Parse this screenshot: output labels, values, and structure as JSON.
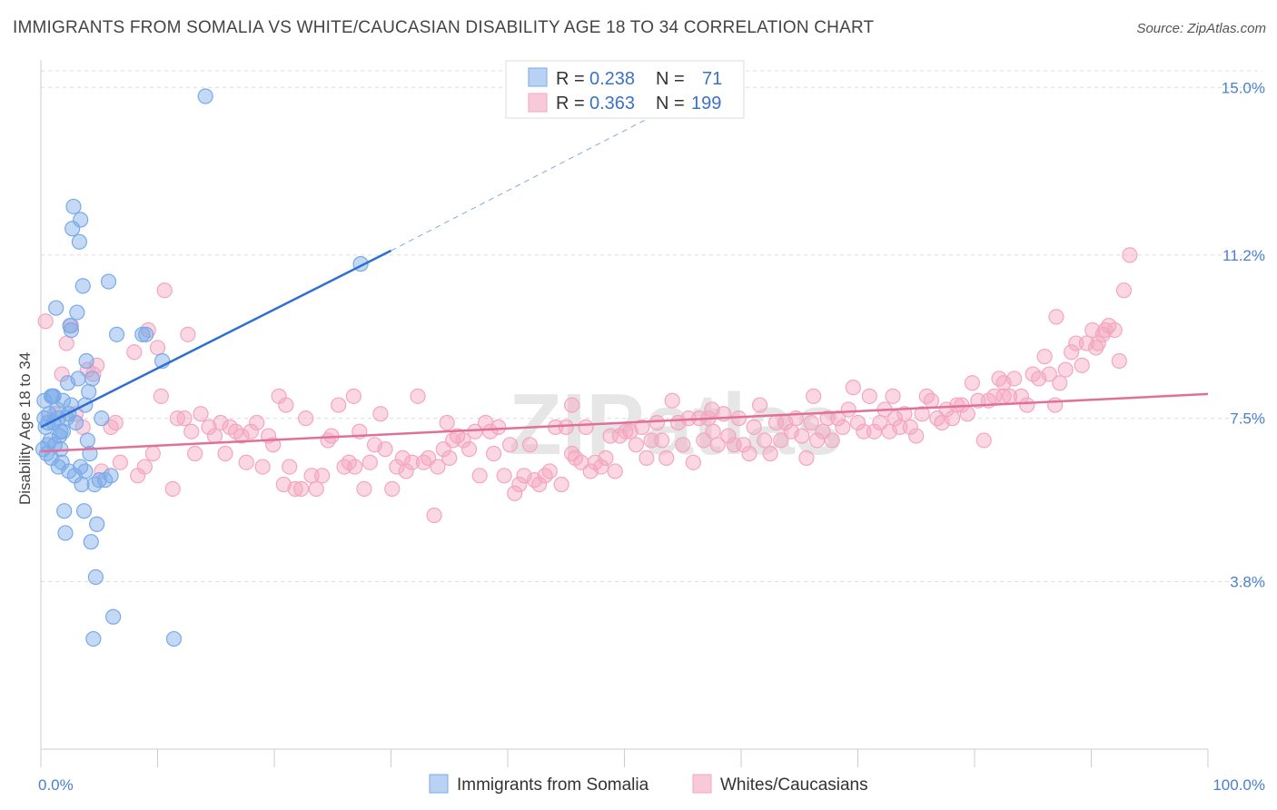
{
  "title": "IMMIGRANTS FROM SOMALIA VS WHITE/CAUCASIAN DISABILITY AGE 18 TO 34 CORRELATION CHART",
  "source": "Source: ZipAtlas.com",
  "watermark": "ZIPatlas",
  "chart_data": {
    "type": "scatter",
    "xlabel": "",
    "ylabel": "Disability Age 18 to 34",
    "xlim": [
      0,
      100
    ],
    "ylim": [
      0,
      15.5
    ],
    "x_tick_labels": [
      "0.0%",
      "100.0%"
    ],
    "y_ticks": [
      3.8,
      7.5,
      11.2,
      15.0
    ],
    "y_tick_labels": [
      "3.8%",
      "7.5%",
      "11.2%",
      "15.0%"
    ],
    "grid": true,
    "legend_placement": "top-center",
    "series": [
      {
        "name": "Immigrants from Somalia",
        "color": "#7aaae8",
        "line_color": "#2c6fd1",
        "R": "0.238",
        "N": "71",
        "trend": {
          "x0": 0,
          "y0": 7.3,
          "x1": 30,
          "y1": 11.3,
          "dash_to_x": 55,
          "dash_to_y": 14.7
        },
        "points": [
          [
            0.2,
            6.8
          ],
          [
            0.3,
            7.5
          ],
          [
            0.3,
            7.9
          ],
          [
            0.4,
            7.3
          ],
          [
            0.5,
            6.7
          ],
          [
            0.6,
            6.9
          ],
          [
            0.7,
            7.6
          ],
          [
            0.8,
            7.0
          ],
          [
            0.9,
            6.6
          ],
          [
            1.0,
            8.0
          ],
          [
            1.1,
            7.4
          ],
          [
            1.2,
            6.9
          ],
          [
            1.3,
            10.0
          ],
          [
            1.4,
            7.7
          ],
          [
            1.5,
            6.4
          ],
          [
            1.6,
            7.1
          ],
          [
            1.7,
            6.8
          ],
          [
            1.8,
            6.5
          ],
          [
            1.9,
            7.9
          ],
          [
            2.0,
            5.4
          ],
          [
            2.1,
            4.9
          ],
          [
            2.2,
            7.5
          ],
          [
            2.3,
            8.3
          ],
          [
            2.4,
            6.3
          ],
          [
            2.5,
            9.6
          ],
          [
            2.6,
            7.8
          ],
          [
            2.7,
            11.8
          ],
          [
            2.8,
            12.3
          ],
          [
            3.0,
            7.4
          ],
          [
            3.1,
            9.9
          ],
          [
            3.2,
            8.4
          ],
          [
            3.3,
            11.5
          ],
          [
            3.4,
            12.0
          ],
          [
            3.5,
            6.0
          ],
          [
            3.6,
            10.5
          ],
          [
            3.7,
            5.4
          ],
          [
            3.8,
            6.3
          ],
          [
            3.9,
            8.8
          ],
          [
            4.0,
            7.0
          ],
          [
            4.1,
            8.1
          ],
          [
            4.2,
            6.7
          ],
          [
            4.3,
            4.7
          ],
          [
            4.4,
            8.4
          ],
          [
            4.5,
            2.5
          ],
          [
            4.6,
            6.0
          ],
          [
            4.7,
            3.9
          ],
          [
            4.8,
            5.1
          ],
          [
            5.0,
            6.1
          ],
          [
            5.2,
            7.5
          ],
          [
            5.5,
            6.1
          ],
          [
            5.8,
            10.6
          ],
          [
            6.0,
            6.2
          ],
          [
            6.2,
            3.0
          ],
          [
            6.5,
            9.4
          ],
          [
            1.1,
            8.0
          ],
          [
            1.5,
            7.5
          ],
          [
            0.9,
            8.0
          ],
          [
            1.9,
            7.2
          ],
          [
            2.4,
            7.6
          ],
          [
            2.9,
            6.2
          ],
          [
            3.4,
            6.4
          ],
          [
            3.8,
            7.8
          ],
          [
            8.7,
            9.4
          ],
          [
            9.0,
            9.4
          ],
          [
            10.4,
            8.8
          ],
          [
            11.4,
            2.5
          ],
          [
            14.1,
            14.8
          ],
          [
            27.4,
            11.0
          ],
          [
            2.6,
            9.5
          ],
          [
            1.7,
            7.2
          ],
          [
            0.6,
            7.4
          ]
        ]
      },
      {
        "name": "Whites/Caucasians",
        "color": "#f4a6bf",
        "line_color": "#e0709a",
        "R": "0.363",
        "N": "199",
        "trend": {
          "x0": 0,
          "y0": 6.75,
          "x1": 100,
          "y1": 8.05
        },
        "points": [
          [
            0.4,
            9.7
          ],
          [
            1.2,
            7.6
          ],
          [
            1.8,
            8.5
          ],
          [
            2.2,
            9.2
          ],
          [
            2.6,
            9.6
          ],
          [
            3.0,
            7.6
          ],
          [
            3.6,
            7.3
          ],
          [
            4.0,
            8.6
          ],
          [
            4.5,
            8.5
          ],
          [
            4.8,
            8.7
          ],
          [
            5.2,
            6.3
          ],
          [
            6.0,
            7.3
          ],
          [
            6.4,
            7.4
          ],
          [
            6.8,
            6.5
          ],
          [
            8.0,
            9.0
          ],
          [
            8.3,
            6.2
          ],
          [
            8.9,
            6.4
          ],
          [
            9.2,
            9.5
          ],
          [
            9.6,
            6.7
          ],
          [
            10.0,
            9.1
          ],
          [
            10.3,
            8.0
          ],
          [
            10.6,
            10.4
          ],
          [
            11.3,
            5.9
          ],
          [
            11.7,
            7.5
          ],
          [
            12.6,
            9.4
          ],
          [
            12.9,
            7.2
          ],
          [
            13.2,
            6.7
          ],
          [
            13.7,
            7.6
          ],
          [
            14.4,
            7.3
          ],
          [
            14.9,
            7.1
          ],
          [
            15.4,
            7.4
          ],
          [
            15.8,
            6.7
          ],
          [
            16.2,
            7.3
          ],
          [
            16.7,
            7.2
          ],
          [
            17.2,
            7.1
          ],
          [
            17.6,
            6.5
          ],
          [
            18.0,
            7.2
          ],
          [
            18.5,
            7.4
          ],
          [
            19.0,
            6.4
          ],
          [
            19.5,
            7.1
          ],
          [
            19.9,
            6.9
          ],
          [
            20.4,
            8.0
          ],
          [
            20.8,
            6.0
          ],
          [
            21.3,
            6.4
          ],
          [
            21.8,
            5.9
          ],
          [
            22.3,
            5.9
          ],
          [
            22.7,
            7.5
          ],
          [
            23.2,
            6.2
          ],
          [
            23.6,
            5.9
          ],
          [
            24.1,
            6.2
          ],
          [
            24.6,
            7.0
          ],
          [
            24.9,
            7.1
          ],
          [
            25.5,
            7.8
          ],
          [
            26.0,
            6.4
          ],
          [
            26.4,
            6.5
          ],
          [
            26.9,
            6.4
          ],
          [
            27.3,
            7.2
          ],
          [
            27.7,
            5.9
          ],
          [
            28.2,
            6.5
          ],
          [
            28.6,
            6.9
          ],
          [
            29.1,
            7.6
          ],
          [
            29.5,
            6.8
          ],
          [
            30.1,
            5.9
          ],
          [
            30.5,
            6.4
          ],
          [
            31.0,
            6.6
          ],
          [
            31.3,
            6.3
          ],
          [
            31.8,
            6.5
          ],
          [
            32.3,
            8.0
          ],
          [
            32.8,
            6.5
          ],
          [
            33.2,
            6.6
          ],
          [
            33.7,
            5.3
          ],
          [
            34.0,
            6.4
          ],
          [
            34.5,
            6.8
          ],
          [
            35.0,
            6.6
          ],
          [
            35.3,
            7.0
          ],
          [
            35.7,
            7.1
          ],
          [
            36.2,
            7.0
          ],
          [
            36.7,
            6.8
          ],
          [
            37.2,
            7.2
          ],
          [
            37.6,
            6.2
          ],
          [
            38.1,
            7.4
          ],
          [
            38.5,
            7.2
          ],
          [
            38.8,
            6.7
          ],
          [
            39.2,
            7.3
          ],
          [
            39.7,
            6.2
          ],
          [
            40.2,
            6.9
          ],
          [
            40.6,
            5.8
          ],
          [
            41.0,
            6.0
          ],
          [
            41.4,
            6.2
          ],
          [
            41.9,
            6.9
          ],
          [
            42.3,
            6.1
          ],
          [
            42.7,
            6.0
          ],
          [
            43.2,
            6.2
          ],
          [
            43.6,
            6.3
          ],
          [
            44.1,
            7.3
          ],
          [
            44.6,
            6.0
          ],
          [
            45.0,
            7.3
          ],
          [
            45.5,
            6.7
          ],
          [
            45.8,
            6.6
          ],
          [
            46.3,
            6.5
          ],
          [
            46.7,
            7.3
          ],
          [
            47.1,
            6.3
          ],
          [
            47.5,
            6.5
          ],
          [
            48.0,
            6.4
          ],
          [
            48.4,
            6.6
          ],
          [
            48.8,
            7.1
          ],
          [
            49.2,
            6.3
          ],
          [
            49.6,
            7.1
          ],
          [
            50.1,
            7.2
          ],
          [
            50.5,
            7.2
          ],
          [
            51.0,
            6.9
          ],
          [
            51.5,
            7.3
          ],
          [
            51.9,
            6.6
          ],
          [
            52.3,
            7.0
          ],
          [
            52.8,
            7.4
          ],
          [
            53.2,
            7.0
          ],
          [
            53.6,
            6.6
          ],
          [
            54.1,
            7.9
          ],
          [
            54.6,
            7.4
          ],
          [
            55.0,
            6.9
          ],
          [
            55.5,
            7.5
          ],
          [
            55.9,
            6.5
          ],
          [
            56.4,
            7.5
          ],
          [
            56.8,
            7.0
          ],
          [
            57.2,
            7.5
          ],
          [
            57.6,
            7.2
          ],
          [
            58.0,
            6.9
          ],
          [
            58.5,
            7.6
          ],
          [
            58.9,
            7.1
          ],
          [
            59.4,
            6.9
          ],
          [
            59.8,
            7.5
          ],
          [
            60.2,
            6.9
          ],
          [
            60.7,
            6.7
          ],
          [
            61.1,
            7.3
          ],
          [
            61.6,
            7.8
          ],
          [
            62.0,
            7.0
          ],
          [
            62.5,
            6.7
          ],
          [
            63.0,
            7.4
          ],
          [
            63.4,
            7.0
          ],
          [
            63.8,
            7.4
          ],
          [
            64.3,
            7.2
          ],
          [
            64.7,
            7.5
          ],
          [
            65.2,
            7.1
          ],
          [
            65.6,
            6.6
          ],
          [
            66.0,
            7.4
          ],
          [
            66.5,
            7.0
          ],
          [
            67.0,
            7.2
          ],
          [
            67.4,
            7.5
          ],
          [
            67.8,
            7.0
          ],
          [
            68.3,
            7.5
          ],
          [
            68.7,
            7.3
          ],
          [
            69.2,
            7.7
          ],
          [
            69.6,
            8.2
          ],
          [
            70.0,
            7.4
          ],
          [
            70.5,
            7.2
          ],
          [
            71.0,
            8.0
          ],
          [
            71.4,
            7.2
          ],
          [
            71.9,
            7.4
          ],
          [
            72.3,
            7.7
          ],
          [
            72.7,
            7.2
          ],
          [
            73.2,
            7.5
          ],
          [
            73.6,
            7.3
          ],
          [
            74.0,
            7.6
          ],
          [
            74.5,
            7.3
          ],
          [
            75.0,
            7.1
          ],
          [
            75.5,
            7.6
          ],
          [
            75.9,
            8.0
          ],
          [
            76.3,
            7.9
          ],
          [
            76.8,
            7.5
          ],
          [
            77.2,
            7.4
          ],
          [
            77.6,
            7.7
          ],
          [
            78.1,
            7.5
          ],
          [
            78.5,
            7.8
          ],
          [
            78.9,
            7.8
          ],
          [
            79.4,
            7.6
          ],
          [
            79.8,
            8.3
          ],
          [
            80.3,
            7.9
          ],
          [
            80.8,
            7.0
          ],
          [
            81.2,
            7.9
          ],
          [
            81.7,
            8.0
          ],
          [
            82.1,
            8.4
          ],
          [
            82.5,
            8.0
          ],
          [
            83.0,
            8.0
          ],
          [
            83.4,
            8.4
          ],
          [
            84.0,
            8.0
          ],
          [
            84.5,
            7.8
          ],
          [
            85.0,
            8.5
          ],
          [
            85.5,
            8.4
          ],
          [
            86.0,
            8.9
          ],
          [
            86.4,
            8.5
          ],
          [
            86.9,
            7.8
          ],
          [
            87.3,
            8.3
          ],
          [
            87.8,
            8.6
          ],
          [
            88.3,
            9.0
          ],
          [
            88.7,
            9.2
          ],
          [
            89.2,
            8.7
          ],
          [
            89.6,
            9.2
          ],
          [
            90.1,
            9.5
          ],
          [
            90.6,
            9.2
          ],
          [
            91.0,
            9.4
          ],
          [
            91.5,
            9.6
          ],
          [
            92.0,
            9.5
          ],
          [
            92.4,
            8.8
          ],
          [
            92.8,
            10.4
          ],
          [
            93.3,
            11.2
          ],
          [
            12.3,
            7.5
          ],
          [
            21.0,
            7.8
          ],
          [
            26.8,
            8.0
          ],
          [
            34.8,
            7.4
          ],
          [
            45.5,
            7.8
          ],
          [
            57.5,
            7.7
          ],
          [
            66.2,
            8.0
          ],
          [
            73.0,
            8.0
          ],
          [
            82.5,
            8.3
          ],
          [
            90.4,
            9.1
          ],
          [
            91.2,
            9.5
          ],
          [
            87.0,
            9.8
          ]
        ]
      }
    ]
  },
  "bottom_legend": [
    "Immigrants from Somalia",
    "Whites/Caucasians"
  ]
}
